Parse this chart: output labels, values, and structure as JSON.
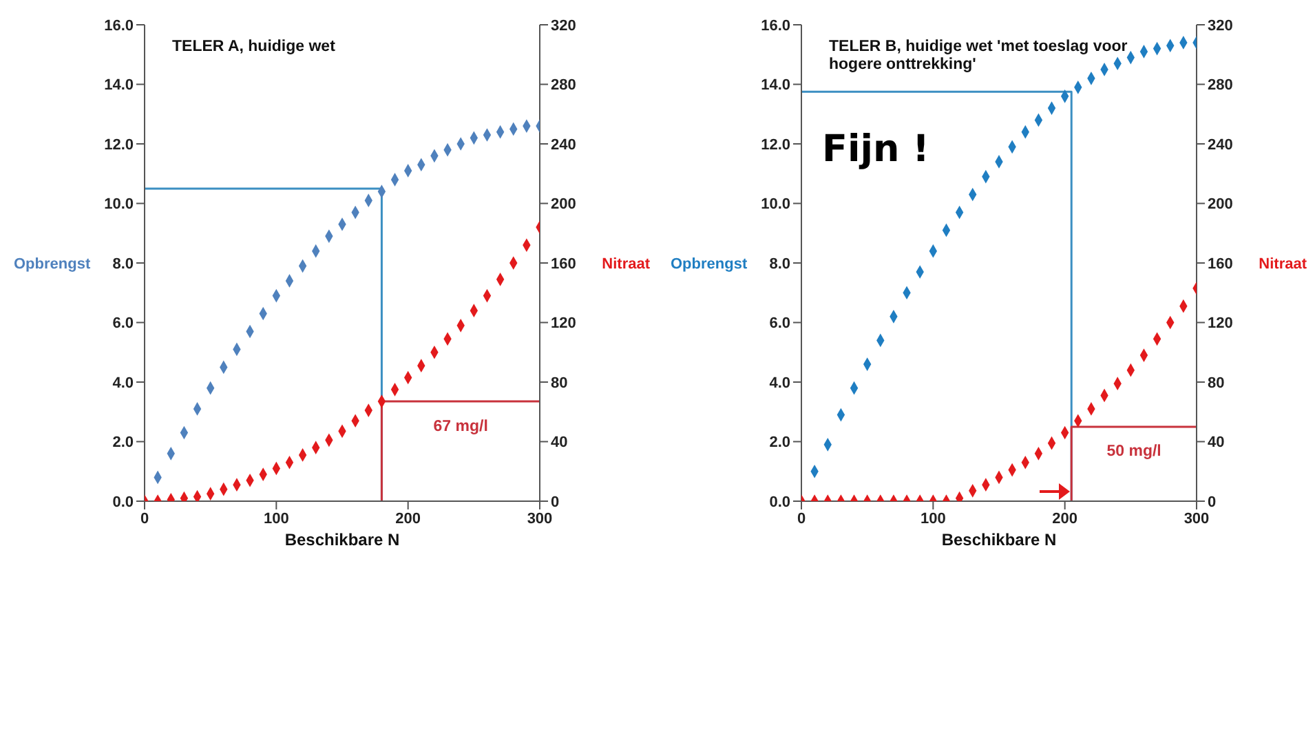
{
  "chart_data": [
    {
      "type": "scatter",
      "title": "TELER A, huidige wet",
      "xlabel": "Beschikbare N",
      "ylabel": "Opbrengst",
      "y2label": "Nitraat",
      "marker": "diamond",
      "xlim": [
        0,
        300
      ],
      "xticks": [
        0,
        100,
        200,
        300
      ],
      "ylim": [
        0,
        16
      ],
      "yticks": [
        {
          "value": 0,
          "label": "0.0"
        },
        {
          "value": 2,
          "label": "2.0"
        },
        {
          "value": 4,
          "label": "4.0"
        },
        {
          "value": 6,
          "label": "6.0"
        },
        {
          "value": 8,
          "label": "8.0"
        },
        {
          "value": 10,
          "label": "10.0"
        },
        {
          "value": 12,
          "label": "12.0"
        },
        {
          "value": 14,
          "label": "14.0"
        },
        {
          "value": 16,
          "label": "16.0"
        }
      ],
      "y2lim": [
        0,
        320
      ],
      "y2ticks": [
        0,
        40,
        80,
        120,
        160,
        200,
        240,
        280,
        320
      ],
      "series": [
        {
          "color": "#4f81bd",
          "x": [
            10,
            20,
            30,
            40,
            50,
            60,
            70,
            80,
            90,
            100,
            110,
            120,
            130,
            140,
            150,
            160,
            170,
            180,
            190,
            200,
            210,
            220,
            230,
            240,
            250,
            260,
            270,
            280,
            290,
            300
          ],
          "values": [
            0.8,
            1.6,
            2.3,
            3.1,
            3.8,
            4.5,
            5.1,
            5.7,
            6.3,
            6.9,
            7.4,
            7.9,
            8.4,
            8.9,
            9.3,
            9.7,
            10.1,
            10.4,
            10.8,
            11.1,
            11.3,
            11.6,
            11.8,
            12.0,
            12.2,
            12.3,
            12.4,
            12.5,
            12.6,
            12.6
          ]
        },
        {
          "color": "#e31a1c",
          "axis": "y2",
          "x": [
            0,
            10,
            20,
            30,
            40,
            50,
            60,
            70,
            80,
            90,
            100,
            110,
            120,
            130,
            140,
            150,
            160,
            170,
            180,
            190,
            200,
            210,
            220,
            230,
            240,
            250,
            260,
            270,
            280,
            290,
            300
          ],
          "values": [
            0,
            0,
            1,
            2,
            3,
            5,
            8,
            11,
            14,
            18,
            22,
            26,
            31,
            36,
            41,
            47,
            54,
            61,
            67,
            75,
            83,
            91,
            100,
            109,
            118,
            128,
            138,
            149,
            160,
            172,
            184
          ]
        },
        {
          "type": "line",
          "marker": "none",
          "color": "#3b8fc2",
          "x": [
            0,
            180,
            180
          ],
          "values": [
            10.5,
            10.5,
            0
          ]
        },
        {
          "type": "line",
          "marker": "none",
          "color": "#c8323c",
          "axis": "y2",
          "x": [
            180,
            180,
            300
          ],
          "values": [
            0,
            67,
            67
          ]
        }
      ],
      "annotations": [
        "67 mg/l"
      ]
    },
    {
      "type": "scatter",
      "title": "TELER B, huidige wet 'met toeslag voor hogere onttrekking'",
      "xlabel": "Beschikbare N",
      "ylabel": "Opbrengst",
      "y2label": "Nitraat",
      "marker": "diamond",
      "xlim": [
        0,
        300
      ],
      "xticks": [
        0,
        100,
        200,
        300
      ],
      "ylim": [
        0,
        16
      ],
      "yticks": [
        {
          "value": 0,
          "label": "0.0"
        },
        {
          "value": 2,
          "label": "2.0"
        },
        {
          "value": 4,
          "label": "4.0"
        },
        {
          "value": 6,
          "label": "6.0"
        },
        {
          "value": 8,
          "label": "8.0"
        },
        {
          "value": 10,
          "label": "10.0"
        },
        {
          "value": 12,
          "label": "12.0"
        },
        {
          "value": 14,
          "label": "14.0"
        },
        {
          "value": 16,
          "label": "16.0"
        }
      ],
      "y2lim": [
        0,
        320
      ],
      "y2ticks": [
        0,
        40,
        80,
        120,
        160,
        200,
        240,
        280,
        320
      ],
      "series": [
        {
          "color": "#1f7ec2",
          "x": [
            10,
            20,
            30,
            40,
            50,
            60,
            70,
            80,
            90,
            100,
            110,
            120,
            130,
            140,
            150,
            160,
            170,
            180,
            190,
            200,
            210,
            220,
            230,
            240,
            250,
            260,
            270,
            280,
            290,
            300
          ],
          "values": [
            1.0,
            1.9,
            2.9,
            3.8,
            4.6,
            5.4,
            6.2,
            7.0,
            7.7,
            8.4,
            9.1,
            9.7,
            10.3,
            10.9,
            11.4,
            11.9,
            12.4,
            12.8,
            13.2,
            13.6,
            13.9,
            14.2,
            14.5,
            14.7,
            14.9,
            15.1,
            15.2,
            15.3,
            15.4,
            15.4
          ]
        },
        {
          "color": "#e31a1c",
          "axis": "y2",
          "x": [
            0,
            10,
            20,
            30,
            40,
            50,
            60,
            70,
            80,
            90,
            100,
            110,
            120,
            130,
            140,
            150,
            160,
            170,
            180,
            190,
            200,
            210,
            220,
            230,
            240,
            250,
            260,
            270,
            280,
            290,
            300
          ],
          "values": [
            0,
            0,
            0,
            0,
            0,
            0,
            0,
            0,
            0,
            0,
            0,
            0,
            2,
            7,
            11,
            16,
            21,
            26,
            32,
            39,
            46,
            54,
            62,
            71,
            79,
            88,
            98,
            109,
            120,
            131,
            143
          ]
        },
        {
          "type": "line",
          "marker": "none",
          "color": "#3b8fc2",
          "x": [
            0,
            205,
            205
          ],
          "values": [
            13.75,
            13.75,
            0
          ]
        },
        {
          "type": "line",
          "marker": "none",
          "color": "#c8323c",
          "axis": "y2",
          "x": [
            205,
            205,
            300
          ],
          "values": [
            0,
            50,
            50
          ]
        }
      ],
      "annotations": [
        "Fijn !",
        "50 mg/l"
      ]
    }
  ]
}
